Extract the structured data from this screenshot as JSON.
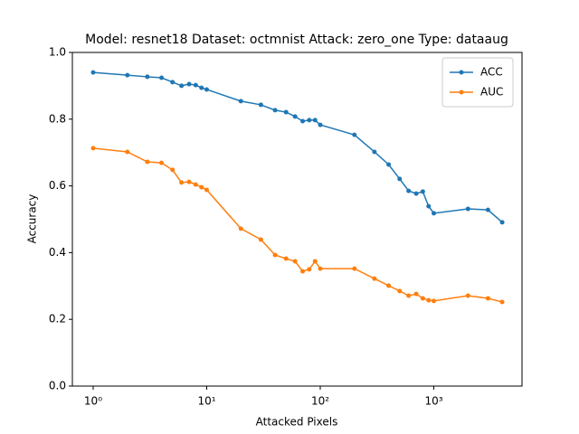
{
  "chart_data": {
    "type": "line",
    "title": "Model: resnet18 Dataset: octmnist Attack: zero_one Type: dataaug",
    "x_label": "Attacked Pixels",
    "y_label": "Accuracy",
    "x_scale": "log",
    "x": [
      1,
      2,
      3,
      4,
      5,
      6,
      7,
      8,
      9,
      10,
      20,
      30,
      40,
      50,
      60,
      70,
      80,
      90,
      100,
      200,
      300,
      400,
      500,
      600,
      700,
      800,
      900,
      1000,
      2000,
      3000,
      4000
    ],
    "series": [
      {
        "name": "ACC",
        "color": "#1f77b4",
        "values": [
          0.94,
          0.932,
          0.927,
          0.924,
          0.911,
          0.9,
          0.905,
          0.902,
          0.894,
          0.889,
          0.854,
          0.843,
          0.827,
          0.821,
          0.808,
          0.794,
          0.797,
          0.797,
          0.783,
          0.753,
          0.702,
          0.664,
          0.621,
          0.585,
          0.577,
          0.583,
          0.539,
          0.518,
          0.531,
          0.528,
          0.491
        ]
      },
      {
        "name": "AUC",
        "color": "#ff7f0e",
        "values": [
          0.713,
          0.702,
          0.672,
          0.669,
          0.648,
          0.61,
          0.612,
          0.604,
          0.596,
          0.588,
          0.472,
          0.439,
          0.393,
          0.382,
          0.374,
          0.344,
          0.35,
          0.374,
          0.352,
          0.352,
          0.322,
          0.301,
          0.285,
          0.271,
          0.276,
          0.263,
          0.257,
          0.255,
          0.271,
          0.263,
          0.252
        ]
      }
    ],
    "xlim": [
      0.656,
      5980
    ],
    "ylim": [
      0,
      1
    ],
    "xticks": [
      {
        "value": 1,
        "label": "10⁰"
      },
      {
        "value": 10,
        "label": "10¹"
      },
      {
        "value": 100,
        "label": "10²"
      },
      {
        "value": 1000,
        "label": "10³"
      }
    ],
    "yticks": [
      {
        "value": 0,
        "label": "0.0"
      },
      0.2,
      0.4,
      0.6,
      0.8,
      {
        "value": 1,
        "label": "1.0"
      }
    ],
    "legend": "upper right"
  }
}
